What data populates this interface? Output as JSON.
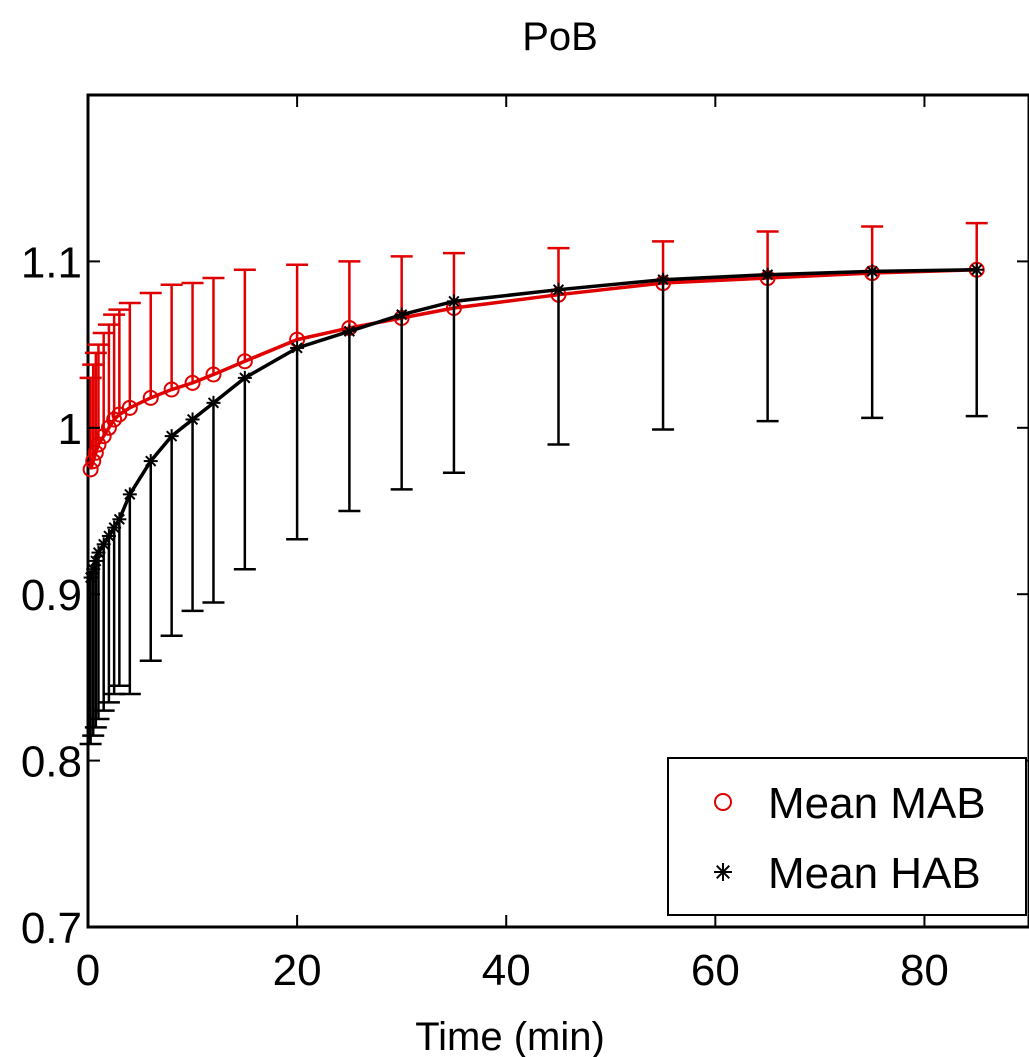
{
  "chart_data": {
    "type": "line",
    "title": "PoB",
    "xlabel": "Time (min)",
    "ylabel": "",
    "xlim": [
      0,
      90
    ],
    "ylim": [
      0.7,
      1.2
    ],
    "xticks": [
      0,
      20,
      40,
      60,
      80
    ],
    "yticks": [
      0.7,
      0.8,
      0.9,
      1,
      1.1
    ],
    "xtick_labels": [
      "0",
      "20",
      "40",
      "60",
      "80"
    ],
    "ytick_labels": [
      "0.7",
      "0.8",
      "0.9",
      "1",
      "1.1"
    ],
    "grid": false,
    "legend_position": "bottom-right",
    "series": [
      {
        "name": "Mean MAB",
        "color": "#e00000",
        "marker": "circle",
        "error_direction": "up",
        "x": [
          0.25,
          0.5,
          0.75,
          1,
          1.5,
          2,
          2.5,
          3,
          4,
          6,
          8,
          10,
          12,
          15,
          20,
          25,
          30,
          35,
          45,
          55,
          65,
          75,
          85
        ],
        "y": [
          0.975,
          0.98,
          0.985,
          0.99,
          0.995,
          1.0,
          1.005,
          1.008,
          1.012,
          1.018,
          1.023,
          1.027,
          1.032,
          1.04,
          1.053,
          1.06,
          1.066,
          1.072,
          1.08,
          1.087,
          1.09,
          1.093,
          1.095
        ],
        "error": [
          0.055,
          0.058,
          0.06,
          0.06,
          0.062,
          0.062,
          0.063,
          0.063,
          0.063,
          0.063,
          0.063,
          0.06,
          0.058,
          0.055,
          0.045,
          0.04,
          0.037,
          0.033,
          0.028,
          0.025,
          0.028,
          0.028,
          0.028
        ]
      },
      {
        "name": "Mean HAB",
        "color": "#000000",
        "marker": "asterisk",
        "error_direction": "down",
        "x": [
          0.25,
          0.5,
          0.75,
          1,
          1.5,
          2,
          2.5,
          3,
          4,
          6,
          8,
          10,
          12,
          15,
          20,
          25,
          30,
          35,
          45,
          55,
          65,
          75,
          85
        ],
        "y": [
          0.91,
          0.915,
          0.92,
          0.925,
          0.93,
          0.935,
          0.94,
          0.945,
          0.96,
          0.98,
          0.995,
          1.005,
          1.015,
          1.03,
          1.048,
          1.058,
          1.068,
          1.076,
          1.083,
          1.089,
          1.092,
          1.094,
          1.095
        ],
        "error": [
          0.1,
          0.1,
          0.1,
          0.1,
          0.1,
          0.1,
          0.1,
          0.1,
          0.12,
          0.12,
          0.12,
          0.115,
          0.12,
          0.115,
          0.115,
          0.108,
          0.105,
          0.103,
          0.093,
          0.09,
          0.088,
          0.088,
          0.088
        ]
      }
    ]
  }
}
